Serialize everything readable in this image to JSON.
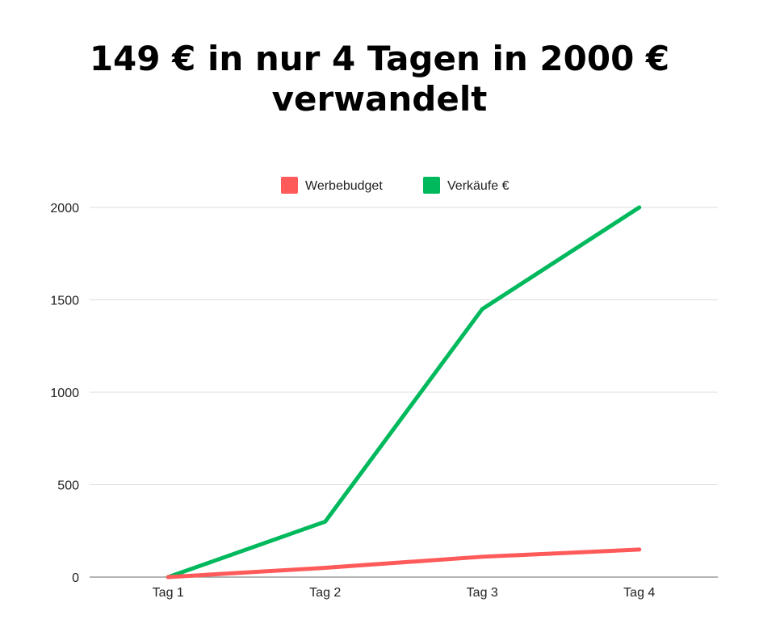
{
  "title": "149 € in nur 4 Tagen in 2000 € verwandelt",
  "chart_data": {
    "type": "line",
    "title": "149 € in nur 4 Tagen in 2000 € verwandelt",
    "categories": [
      "Tag 1",
      "Tag 2",
      "Tag 3",
      "Tag 4"
    ],
    "series": [
      {
        "name": "Werbebudget",
        "values": [
          0,
          50,
          110,
          149
        ],
        "color": "#ff5a5a"
      },
      {
        "name": "Verkäufe €",
        "values": [
          0,
          300,
          1450,
          2000
        ],
        "color": "#00b95c"
      }
    ],
    "yticks": [
      0,
      500,
      1000,
      1500,
      2000
    ],
    "ylim": [
      0,
      2000
    ],
    "xlabel": "",
    "ylabel": "",
    "grid": true,
    "legend_position": "top"
  }
}
